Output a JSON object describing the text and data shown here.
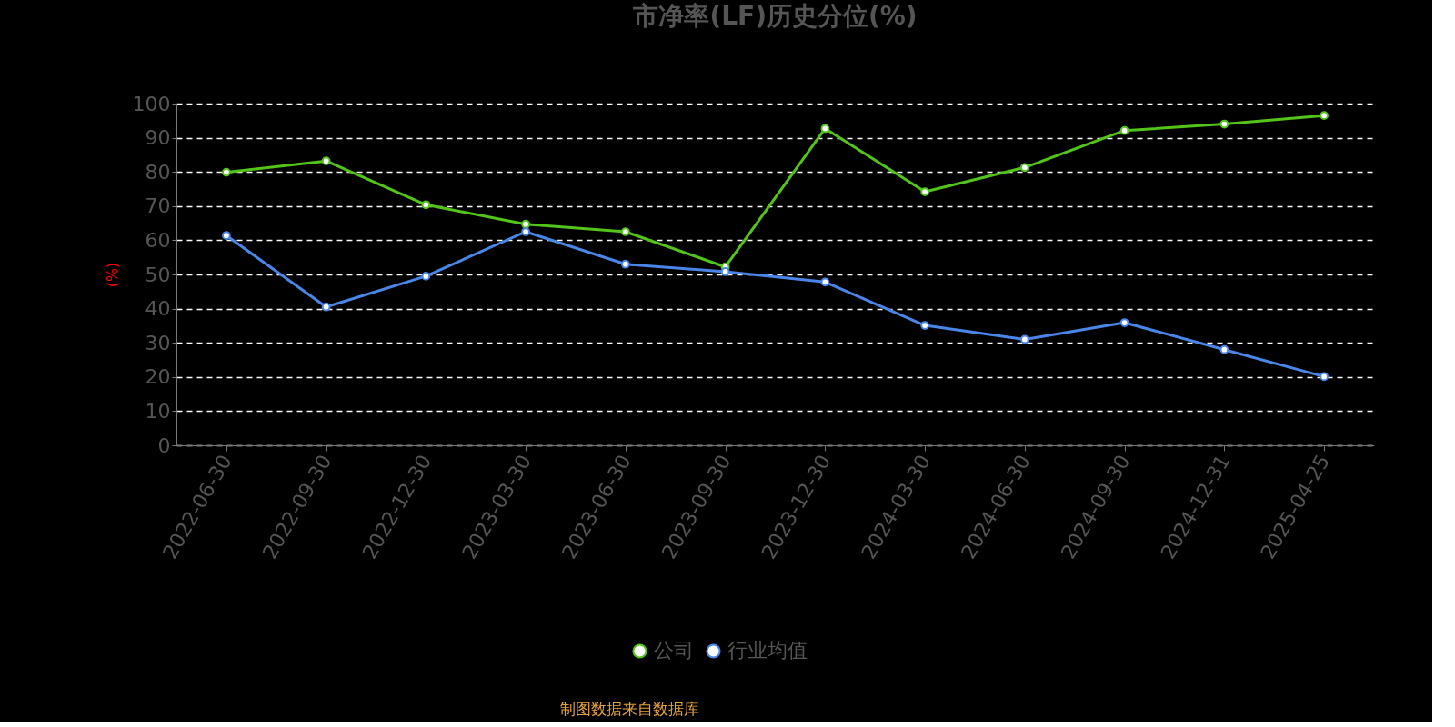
{
  "chart_data": {
    "type": "line",
    "title": "市净率(LF)历史分位(%)",
    "ylabel": "(%)",
    "categories": [
      "2022-06-30",
      "2022-09-30",
      "2022-12-30",
      "2023-03-30",
      "2023-06-30",
      "2023-09-30",
      "2023-12-30",
      "2024-03-30",
      "2024-06-30",
      "2024-09-30",
      "2024-12-31",
      "2025-04-25"
    ],
    "series": [
      {
        "name": "公司",
        "color": "#52c41a",
        "values": [
          79.9,
          83.2,
          70.4,
          64.7,
          62.5,
          52.2,
          92.7,
          74.2,
          81.3,
          92.1,
          94.0,
          96.5
        ]
      },
      {
        "name": "行业均值",
        "color": "#4a86e8",
        "values": [
          61.4,
          40.5,
          49.5,
          62.5,
          53.0,
          50.8,
          47.8,
          35.1,
          31.0,
          35.9,
          28.0,
          20.1
        ]
      }
    ],
    "ylim": [
      0,
      100
    ],
    "yticks": [
      0,
      10,
      20,
      30,
      40,
      50,
      60,
      70,
      80,
      90,
      100
    ],
    "grid": "y",
    "legend": "bottom",
    "marker": "circle",
    "line_style": "solid",
    "annotations": [
      "制图数据来自数据库"
    ]
  }
}
